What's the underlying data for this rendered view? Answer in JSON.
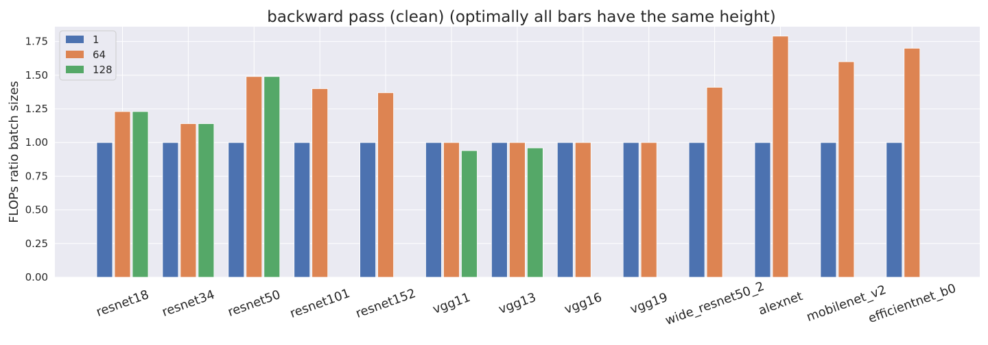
{
  "chart_data": {
    "type": "bar",
    "title": "backward pass (clean) (optimally all bars have the same height)",
    "xlabel": "",
    "ylabel": "FLOPs ratio batch sizes",
    "ylim": [
      0,
      1.86
    ],
    "yticks": [
      "0.00",
      "0.25",
      "0.50",
      "0.75",
      "1.00",
      "1.25",
      "1.50",
      "1.75"
    ],
    "grid": true,
    "legend_position": "top-left",
    "categories": [
      "resnet18",
      "resnet34",
      "resnet50",
      "resnet101",
      "resnet152",
      "vgg11",
      "vgg13",
      "vgg16",
      "vgg19",
      "wide_resnet50_2",
      "alexnet",
      "mobilenet_v2",
      "efficientnet_b0"
    ],
    "series": [
      {
        "name": "1",
        "color": "#4c72b0",
        "values": [
          1.0,
          1.0,
          1.0,
          1.0,
          1.0,
          1.0,
          1.0,
          1.0,
          1.0,
          1.0,
          1.0,
          1.0,
          1.0
        ]
      },
      {
        "name": "64",
        "color": "#dd8452",
        "values": [
          1.23,
          1.14,
          1.49,
          1.4,
          1.37,
          1.0,
          1.0,
          1.0,
          1.0,
          1.41,
          1.79,
          1.6,
          1.7
        ]
      },
      {
        "name": "128",
        "color": "#55a868",
        "values": [
          1.23,
          1.14,
          1.49,
          null,
          null,
          0.94,
          0.96,
          null,
          null,
          null,
          null,
          null,
          null
        ]
      }
    ]
  },
  "colors": {
    "plot_background": "#eaeaf2",
    "grid": "#ffffff"
  }
}
